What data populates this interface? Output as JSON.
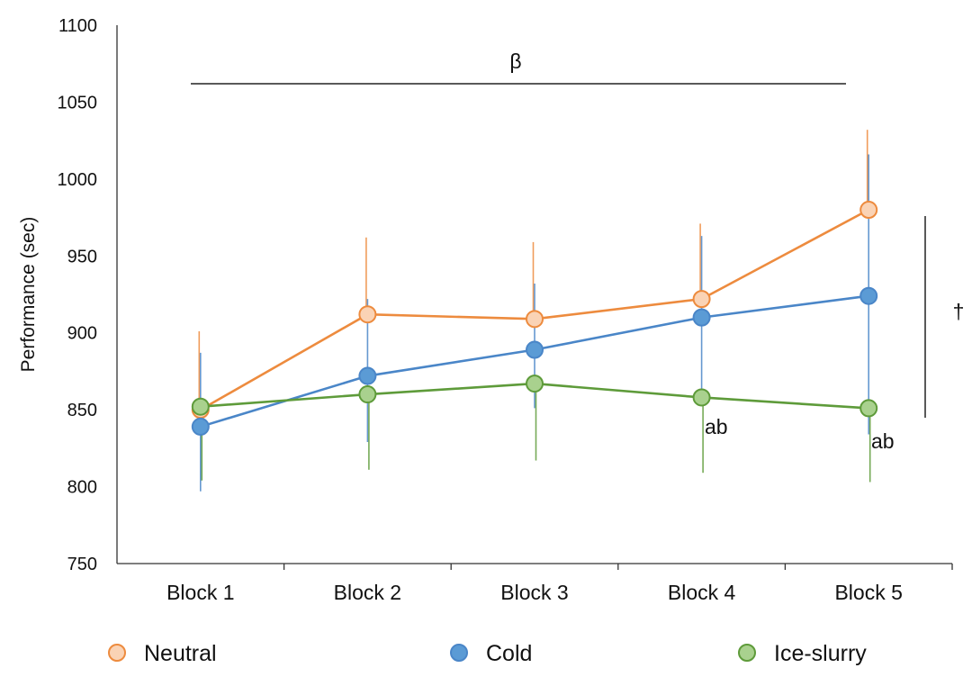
{
  "chart_data": {
    "type": "line",
    "title": "",
    "xlabel": "",
    "ylabel": "Performance (sec)",
    "ylim": [
      750,
      1100
    ],
    "yticks": [
      750,
      800,
      850,
      900,
      950,
      1000,
      1050,
      1100
    ],
    "categories": [
      "Block 1",
      "Block 2",
      "Block 3",
      "Block 4",
      "Block 5"
    ],
    "legend_position": "bottom",
    "series": [
      {
        "name": "Neutral",
        "color": "#ED8B3E",
        "fill": "#FAD3B5",
        "values": [
          850,
          912,
          909,
          922,
          980
        ],
        "err_up": [
          51,
          50,
          50,
          49,
          52
        ]
      },
      {
        "name": "Cold",
        "color": "#4A86C8",
        "fill": "#5B9BD5",
        "values": [
          839,
          872,
          889,
          910,
          924
        ],
        "err_up": [
          48,
          50,
          43,
          53,
          92
        ],
        "err_down": [
          42,
          43,
          38,
          50,
          90
        ]
      },
      {
        "name": "Ice-slurry",
        "color": "#5E9B3A",
        "fill": "#A9D18E",
        "values": [
          852,
          860,
          867,
          858,
          851
        ],
        "err_down": [
          48,
          49,
          50,
          49,
          48
        ]
      }
    ],
    "annotations": {
      "beta": "β",
      "dagger": "†",
      "ab_block4": "ab",
      "ab_block5": "ab"
    }
  }
}
